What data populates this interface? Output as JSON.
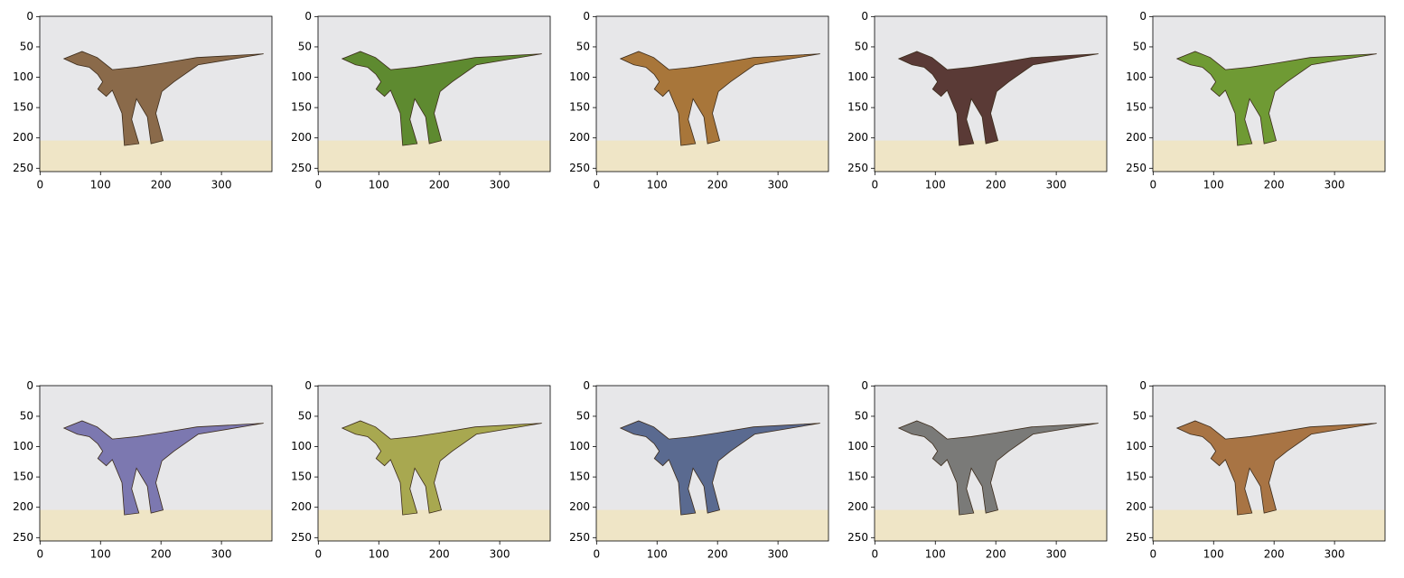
{
  "chart_data": [
    {
      "type": "image",
      "xlim": [
        -0.5,
        383.5
      ],
      "ylim": [
        255.5,
        -0.5
      ],
      "xticks": [
        0,
        100,
        200,
        300
      ],
      "yticks": [
        0,
        50,
        100,
        150,
        200,
        250
      ]
    },
    {
      "type": "image",
      "xlim": [
        -0.5,
        383.5
      ],
      "ylim": [
        255.5,
        -0.5
      ],
      "xticks": [
        0,
        100,
        200,
        300
      ],
      "yticks": [
        0,
        50,
        100,
        150,
        200,
        250
      ]
    },
    {
      "type": "image",
      "xlim": [
        -0.5,
        383.5
      ],
      "ylim": [
        255.5,
        -0.5
      ],
      "xticks": [
        0,
        100,
        200,
        300
      ],
      "yticks": [
        0,
        50,
        100,
        150,
        200,
        250
      ]
    },
    {
      "type": "image",
      "xlim": [
        -0.5,
        383.5
      ],
      "ylim": [
        255.5,
        -0.5
      ],
      "xticks": [
        0,
        100,
        200,
        300
      ],
      "yticks": [
        0,
        50,
        100,
        150,
        200,
        250
      ]
    },
    {
      "type": "image",
      "xlim": [
        -0.5,
        383.5
      ],
      "ylim": [
        255.5,
        -0.5
      ],
      "xticks": [
        0,
        100,
        200,
        300
      ],
      "yticks": [
        0,
        50,
        100,
        150,
        200,
        250
      ]
    },
    {
      "type": "image",
      "xlim": [
        -0.5,
        383.5
      ],
      "ylim": [
        255.5,
        -0.5
      ],
      "xticks": [
        0,
        100,
        200,
        300
      ],
      "yticks": [
        0,
        50,
        100,
        150,
        200,
        250
      ]
    },
    {
      "type": "image",
      "xlim": [
        -0.5,
        383.5
      ],
      "ylim": [
        255.5,
        -0.5
      ],
      "xticks": [
        0,
        100,
        200,
        300
      ],
      "yticks": [
        0,
        50,
        100,
        150,
        200,
        250
      ]
    },
    {
      "type": "image",
      "xlim": [
        -0.5,
        383.5
      ],
      "ylim": [
        255.5,
        -0.5
      ],
      "xticks": [
        0,
        100,
        200,
        300
      ],
      "yticks": [
        0,
        50,
        100,
        150,
        200,
        250
      ]
    },
    {
      "type": "image",
      "xlim": [
        -0.5,
        383.5
      ],
      "ylim": [
        255.5,
        -0.5
      ],
      "xticks": [
        0,
        100,
        200,
        300
      ],
      "yticks": [
        0,
        50,
        100,
        150,
        200,
        250
      ]
    },
    {
      "type": "image",
      "xlim": [
        -0.5,
        383.5
      ],
      "ylim": [
        255.5,
        -0.5
      ],
      "xticks": [
        0,
        100,
        200,
        300
      ],
      "yticks": [
        0,
        50,
        100,
        150,
        200,
        250
      ]
    }
  ]
}
